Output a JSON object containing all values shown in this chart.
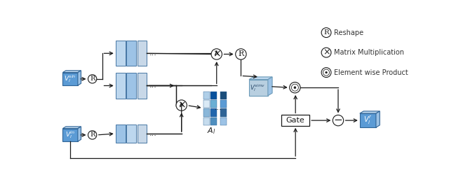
{
  "bg_color": "#ffffff",
  "bc_dark": "#5b9bd5",
  "bc_light": "#bdd7ee",
  "bc_mid": "#9dc3e6",
  "bc_gray": "#c8d8e8",
  "be": "#2f6496",
  "lc": "#1a1a1a",
  "legend": {
    "R_label": "Reshape",
    "X_label": "Matrix Multiplication",
    "dot_label": "Element wise Product"
  },
  "labels": {
    "V_sim": "V_l^{sim}",
    "V_in": "V_l^{in}",
    "V_simv": "V_l^{simv}",
    "V_out": "V_l^{r}",
    "A_l": "A_l",
    "Gate": "Gate"
  }
}
